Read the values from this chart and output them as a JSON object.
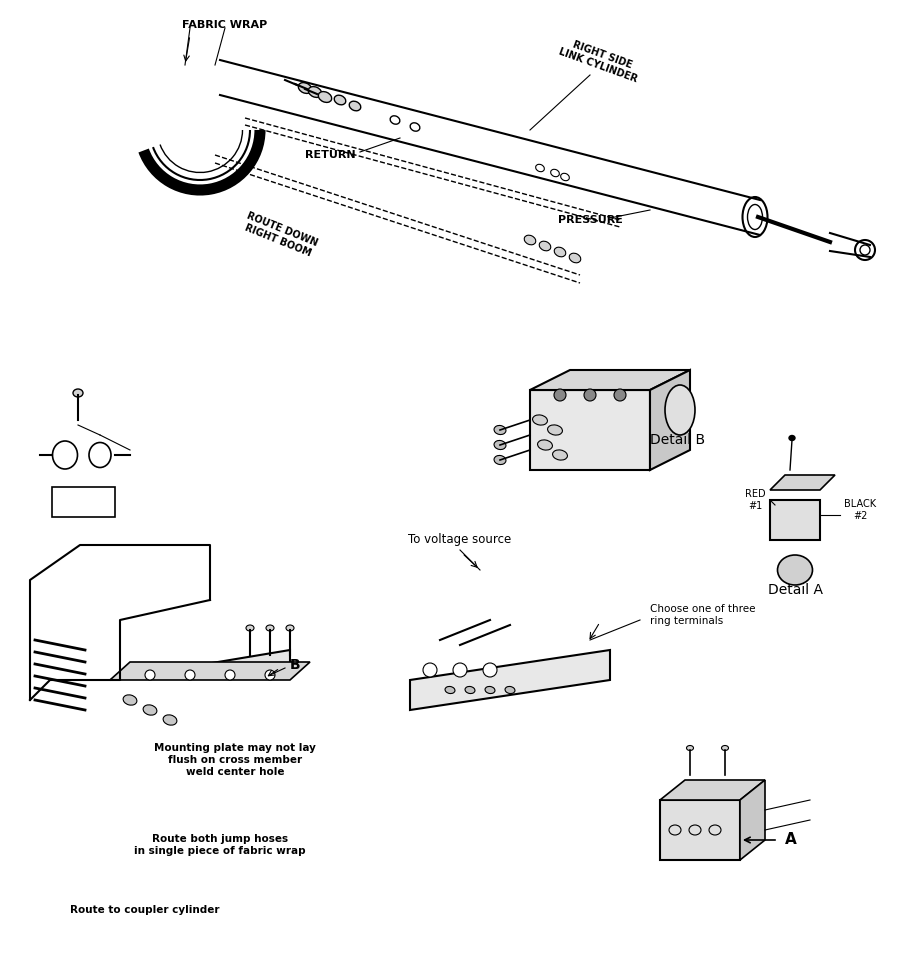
{
  "bg_color": "#f0f0f0",
  "line_color": "#000000",
  "text_color": "#000000",
  "fig_width": 9.01,
  "fig_height": 9.57,
  "labels": {
    "fabric_wrap": "FABRIC WRAP",
    "right_side_link_cylinder": "RIGHT SIDE\nLINK CYLINDER",
    "return": "RETURN",
    "pressure": "PRESSURE",
    "route_down_right_boom": "ROUTE DOWN\nRIGHT BOOM",
    "detail_b": "Detail B",
    "detail_a": "Detail A",
    "red_1": "RED\n#1",
    "black_2": "BLACK\n#2",
    "to_voltage_source": "To voltage source",
    "choose_one": "Choose one of three\nring terminals",
    "mounting_plate": "Mounting plate may not lay\nflush on cross member\nweld center hole",
    "route_both": "Route both jump hoses\nin single piece of fabric wrap",
    "route_to_coupler": "Route to coupler cylinder",
    "b_label": "B",
    "a_label": "A"
  }
}
